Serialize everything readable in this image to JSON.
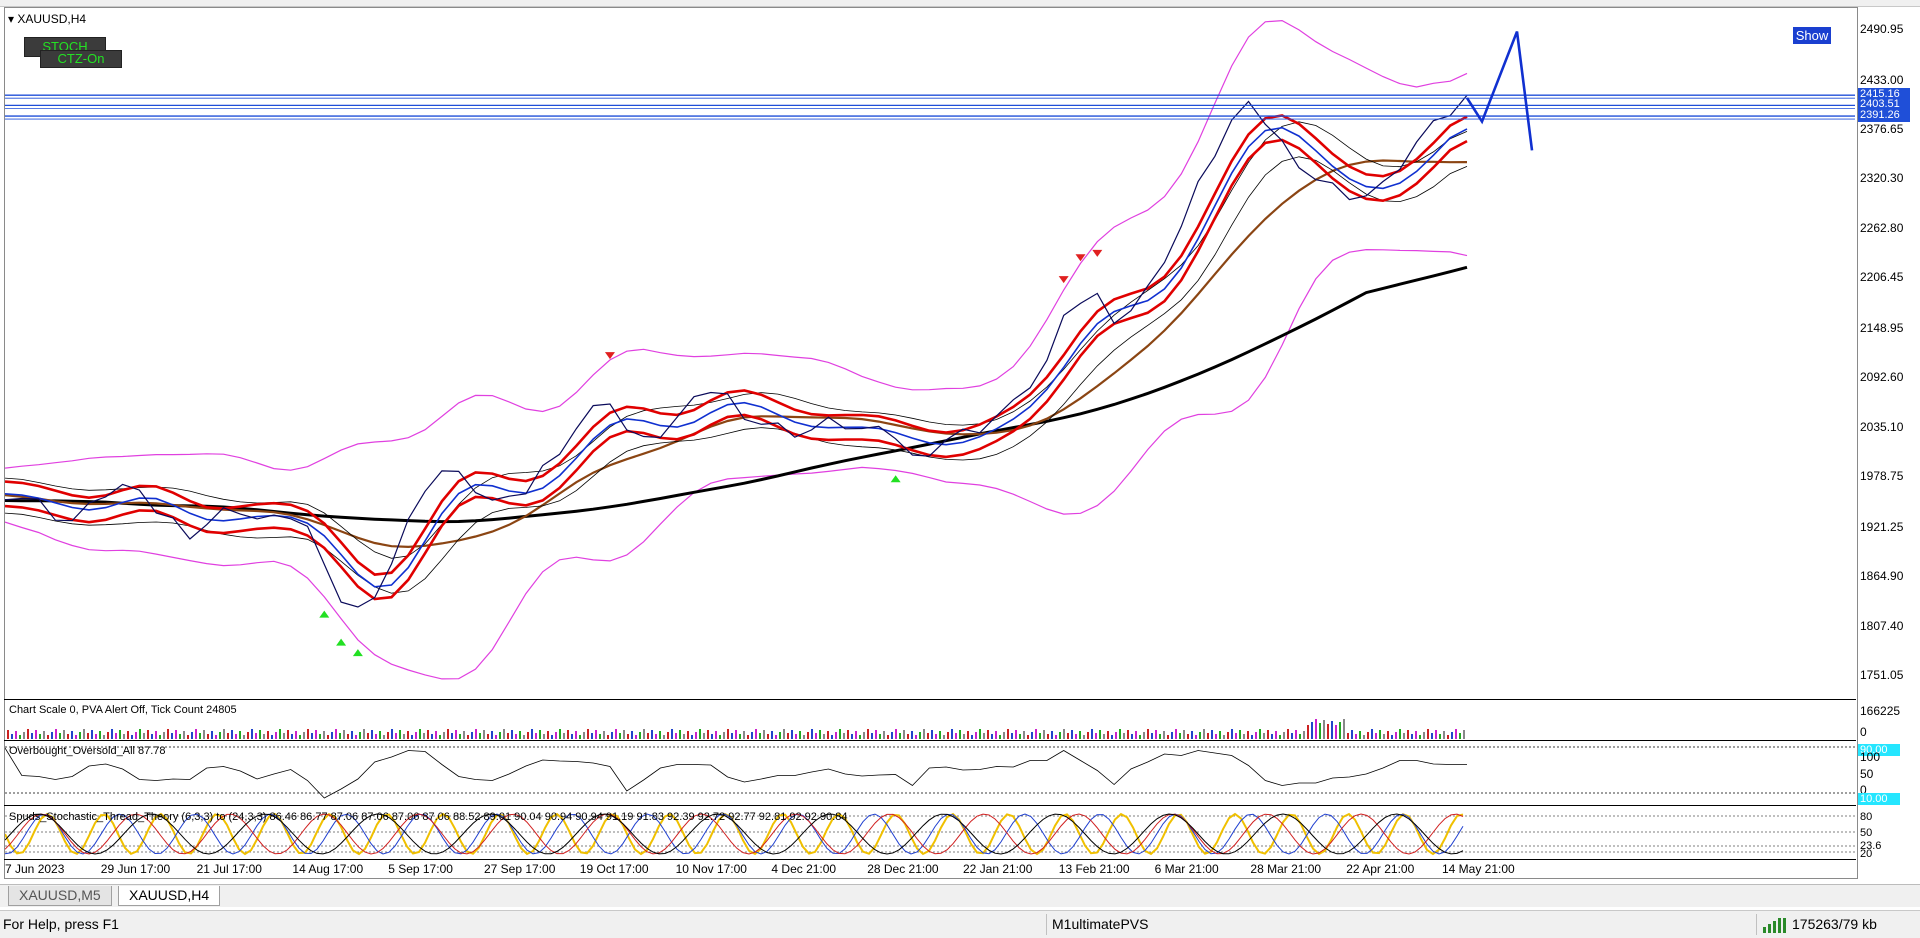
{
  "window": {
    "title": "XAUUSD,H4",
    "show_button": "Show",
    "stoch_button": "STOCH",
    "ctz_button": "CTZ-On"
  },
  "chart_data": {
    "type": "line",
    "symbol": "XAUUSD",
    "timeframe": "H4",
    "price_axis": {
      "ticks": [
        "2490.95",
        "2433.00",
        "2376.65",
        "2320.30",
        "2262.80",
        "2206.45",
        "2148.95",
        "2092.60",
        "2035.10",
        "1978.75",
        "1921.25",
        "1864.90",
        "1807.40",
        "1751.05"
      ],
      "ylim": [
        1725,
        2515
      ]
    },
    "time_axis": {
      "ticks": [
        "7 Jun 2023",
        "29 Jun 17:00",
        "21 Jul 17:00",
        "14 Aug 17:00",
        "5 Sep 17:00",
        "27 Sep 17:00",
        "19 Oct 17:00",
        "10 Nov 17:00",
        "4 Dec 21:00",
        "28 Dec 21:00",
        "22 Jan 21:00",
        "13 Feb 21:00",
        "6 Mar 21:00",
        "28 Mar 21:00",
        "22 Apr 21:00",
        "14 May 21:00"
      ]
    },
    "price_series": {
      "name": "XAUUSD",
      "values": [
        1960,
        1955,
        1948,
        1935,
        1928,
        1942,
        1960,
        1968,
        1955,
        1940,
        1928,
        1915,
        1925,
        1938,
        1942,
        1930,
        1928,
        1935,
        1920,
        1870,
        1838,
        1826,
        1848,
        1880,
        1925,
        1968,
        1985,
        1978,
        1965,
        1950,
        1948,
        1962,
        1988,
        2012,
        2035,
        2055,
        2068,
        2032,
        2018,
        2028,
        2045,
        2062,
        2078,
        2070,
        2052,
        2040,
        2035,
        2030,
        2032,
        2040,
        2038,
        2032,
        2028,
        2025,
        2000,
        2010,
        2022,
        2028,
        2035,
        2048,
        2060,
        2085,
        2110,
        2155,
        2180,
        2185,
        2162,
        2170,
        2192,
        2230,
        2265,
        2310,
        2350,
        2385,
        2400,
        2385,
        2360,
        2340,
        2320,
        2310,
        2302,
        2300,
        2310,
        2335,
        2360,
        2378,
        2395,
        2412
      ]
    },
    "horizontal_levels": [
      {
        "label": "2415.16",
        "value": 2415.16,
        "color": "#1f4fd8"
      },
      {
        "label": "2403.51",
        "value": 2403.51,
        "color": "#1f4fd8"
      },
      {
        "label": "2391.26",
        "value": 2391.26,
        "color": "#1f4fd8"
      }
    ],
    "projection_zigzag": [
      2412,
      2385,
      2488,
      2352
    ],
    "volume_pane": {
      "label": "Chart Scale  0,   PVA Alert Off,   Tick Count  24805",
      "ticks": [
        "166225",
        "0"
      ]
    },
    "oscillator_pane": {
      "label": "Overbought_Oversold_All 87.78",
      "ticks": [
        "100",
        "50",
        "0"
      ],
      "levels": [
        "90.00",
        "10.00"
      ]
    },
    "stochastic_pane": {
      "label": "Spuds_Stochastic_Thread_Theory (6,3,3) to (24,3,3) 86.46 86.77 87.06 87.06 87.06 87.06 88.52 89.01 90.04 90.94 90.94 91.19 91.83 92.39 92.72 92.77 92.81 92.92 90.84",
      "ticks": [
        "80",
        "50",
        "23.6",
        "20"
      ]
    },
    "colors": {
      "price": "#0a0a5a",
      "bands_outer": "#e040e0",
      "ma_red": "#e00000",
      "ma_blue": "#1030d0",
      "ma_brown": "#8b4513",
      "ma_long": "#000000",
      "level": "#1f4fd8"
    }
  },
  "tabs": [
    {
      "label": "XAUUSD,M5",
      "active": false
    },
    {
      "label": "XAUUSD,H4",
      "active": true
    }
  ],
  "status": {
    "help": "For Help, press F1",
    "profile": "M1ultimatePVS",
    "traffic": "175263/79 kb"
  }
}
